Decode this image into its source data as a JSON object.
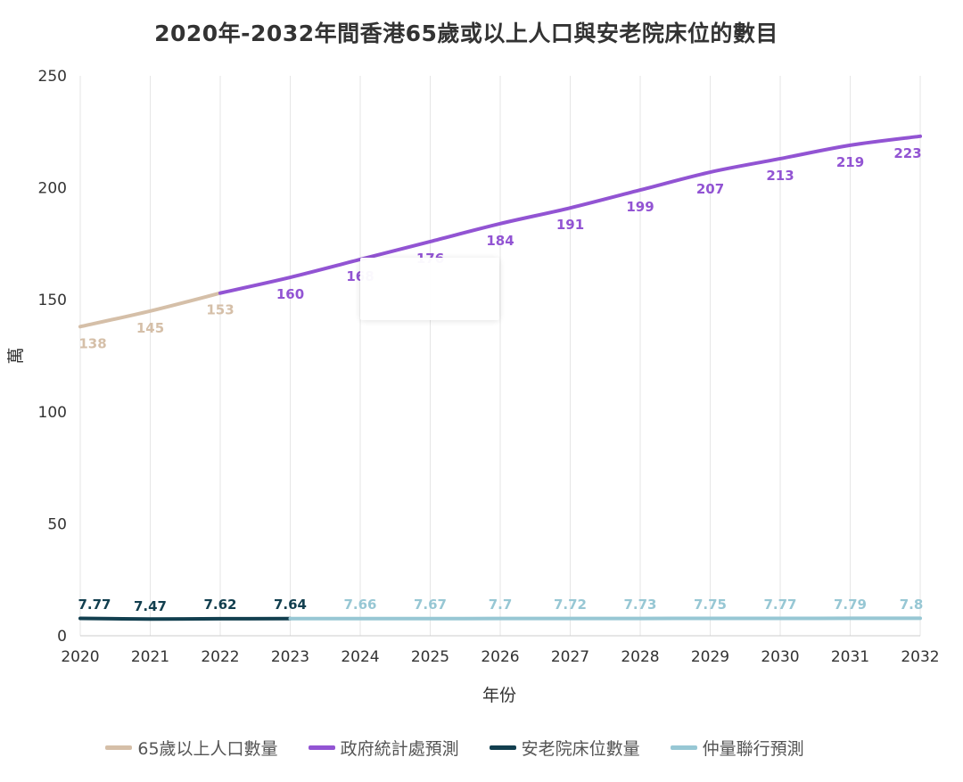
{
  "chart_data": {
    "type": "line",
    "title": "2020年-2032年間香港65歲或以上人口與安老院床位的數目",
    "xlabel": "年份",
    "ylabel": "萬",
    "ylim": [
      0,
      250
    ],
    "yticks": [
      0,
      50,
      100,
      150,
      200,
      250
    ],
    "x": [
      2020,
      2021,
      2022,
      2023,
      2024,
      2025,
      2026,
      2027,
      2028,
      2029,
      2030,
      2031,
      2032
    ],
    "grid": "vertical",
    "legend_position": "bottom",
    "series": [
      {
        "name": "65歲以上人口數量",
        "color": "#d5bfa8",
        "points": [
          {
            "x": 2020,
            "y": 138,
            "label": "138"
          },
          {
            "x": 2021,
            "y": 145,
            "label": "145"
          },
          {
            "x": 2022,
            "y": 153,
            "label": "153"
          }
        ]
      },
      {
        "name": "政府統計處預測",
        "color": "#9254d3",
        "points": [
          {
            "x": 2022,
            "y": 153,
            "label": ""
          },
          {
            "x": 2023,
            "y": 160,
            "label": "160"
          },
          {
            "x": 2024,
            "y": 168,
            "label": "168"
          },
          {
            "x": 2025,
            "y": 176,
            "label": "176"
          },
          {
            "x": 2026,
            "y": 184,
            "label": "184"
          },
          {
            "x": 2027,
            "y": 191,
            "label": "191"
          },
          {
            "x": 2028,
            "y": 199,
            "label": "199"
          },
          {
            "x": 2029,
            "y": 207,
            "label": "207"
          },
          {
            "x": 2030,
            "y": 213,
            "label": "213"
          },
          {
            "x": 2031,
            "y": 219,
            "label": "219"
          },
          {
            "x": 2032,
            "y": 223,
            "label": "223"
          }
        ]
      },
      {
        "name": "安老院床位數量",
        "color": "#123f4f",
        "points": [
          {
            "x": 2020,
            "y": 7.77,
            "label": "7.77"
          },
          {
            "x": 2021,
            "y": 7.47,
            "label": "7.47"
          },
          {
            "x": 2022,
            "y": 7.62,
            "label": "7.62"
          },
          {
            "x": 2023,
            "y": 7.64,
            "label": "7.64"
          }
        ]
      },
      {
        "name": "仲量聯行預測",
        "color": "#97c7d4",
        "points": [
          {
            "x": 2023,
            "y": 7.64,
            "label": ""
          },
          {
            "x": 2024,
            "y": 7.66,
            "label": "7.66"
          },
          {
            "x": 2025,
            "y": 7.67,
            "label": "7.67"
          },
          {
            "x": 2026,
            "y": 7.7,
            "label": "7.7"
          },
          {
            "x": 2027,
            "y": 7.72,
            "label": "7.72"
          },
          {
            "x": 2028,
            "y": 7.73,
            "label": "7.73"
          },
          {
            "x": 2029,
            "y": 7.75,
            "label": "7.75"
          },
          {
            "x": 2030,
            "y": 7.77,
            "label": "7.77"
          },
          {
            "x": 2031,
            "y": 7.79,
            "label": "7.79"
          },
          {
            "x": 2032,
            "y": 7.8,
            "label": "7.8"
          }
        ]
      }
    ]
  },
  "legend": [
    {
      "label": "65歲以上人口數量",
      "color": "#d5bfa8"
    },
    {
      "label": "政府統計處預測",
      "color": "#9254d3"
    },
    {
      "label": "安老院床位數量",
      "color": "#123f4f"
    },
    {
      "label": "仲量聯行預測",
      "color": "#97c7d4"
    }
  ]
}
